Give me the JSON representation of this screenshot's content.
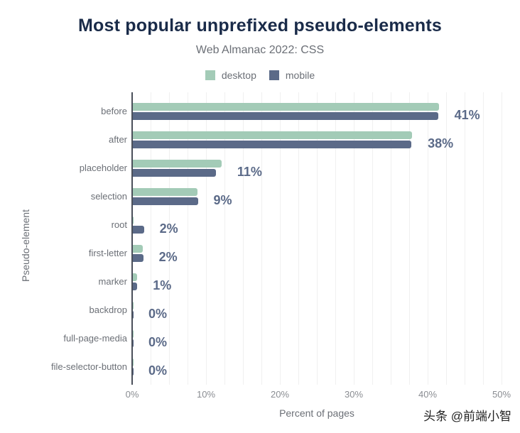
{
  "chart_data": {
    "type": "bar",
    "orientation": "horizontal",
    "title": "Most popular unprefixed pseudo-elements",
    "subtitle": "Web Almanac 2022: CSS",
    "xlabel": "Percent of pages",
    "ylabel": "Pseudo-element",
    "xlim": [
      0,
      50
    ],
    "x_ticks": [
      "0%",
      "10%",
      "20%",
      "30%",
      "40%",
      "50%"
    ],
    "grid": true,
    "legend_position": "top",
    "categories": [
      "before",
      "after",
      "placeholder",
      "selection",
      "root",
      "first-letter",
      "marker",
      "backdrop",
      "full-page-media",
      "file-selector-button"
    ],
    "series": [
      {
        "name": "desktop",
        "color": "#a3cbb7",
        "values": [
          41.5,
          37.9,
          12.1,
          8.8,
          0.2,
          1.4,
          0.7,
          0.1,
          0.1,
          0.1
        ]
      },
      {
        "name": "mobile",
        "color": "#5b6a88",
        "values": [
          41.4,
          37.8,
          11.3,
          8.9,
          1.6,
          1.5,
          0.7,
          0.1,
          0.1,
          0.1
        ]
      }
    ],
    "data_labels": [
      "41%",
      "38%",
      "11%",
      "9%",
      "2%",
      "2%",
      "1%",
      "0%",
      "0%",
      "0%"
    ]
  },
  "watermark": "头条 @前端小智"
}
